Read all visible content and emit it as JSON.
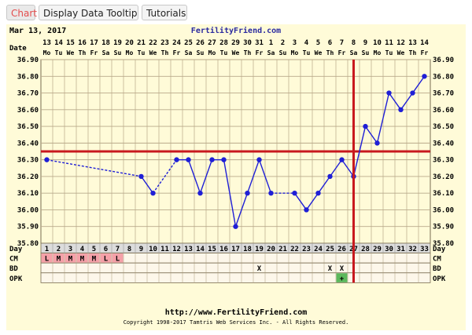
{
  "tabs": [
    {
      "label": "Chart",
      "active": true
    },
    {
      "label": "Display Data Tooltip",
      "active": false
    },
    {
      "label": "Tutorials",
      "active": false
    }
  ],
  "header": {
    "date": "Mar 13, 2017",
    "site": "FertilityFriend.com",
    "row_date_label": "Date",
    "row_day_label": "Day"
  },
  "footer": {
    "url": "http://www.FertilityFriend.com",
    "copyright": "Copyright 1998-2017 Tamtris Web Services Inc. - All Rights Reserved."
  },
  "colors": {
    "plot_bg": "#fffbd8",
    "grid": "#b8a98a",
    "line": "#1f1fd6",
    "coverline": "#c8181e",
    "menses": "#f5a0a8",
    "opk_positive": "#5cb85c",
    "site_link": "#2b2b9f"
  },
  "chart_data": {
    "type": "line",
    "title": "",
    "xlabel": "",
    "ylabel": "",
    "ylim": [
      35.8,
      36.9
    ],
    "yticks": [
      "35.80",
      "35.90",
      "36.00",
      "36.10",
      "36.20",
      "36.30",
      "36.40",
      "36.50",
      "36.60",
      "36.70",
      "36.80",
      "36.90"
    ],
    "dates": [
      "13",
      "14",
      "15",
      "16",
      "17",
      "18",
      "19",
      "20",
      "21",
      "22",
      "23",
      "24",
      "25",
      "26",
      "27",
      "28",
      "29",
      "30",
      "31",
      "1",
      "2",
      "3",
      "4",
      "5",
      "6",
      "7",
      "8",
      "9",
      "10",
      "11",
      "12",
      "13",
      "14"
    ],
    "weekdays": [
      "Mo",
      "Tu",
      "We",
      "Th",
      "Fr",
      "Sa",
      "Su",
      "Mo",
      "Tu",
      "We",
      "Th",
      "Fr",
      "Sa",
      "Su",
      "Mo",
      "Tu",
      "We",
      "Th",
      "Fr",
      "Sa",
      "Su",
      "Mo",
      "Tu",
      "We",
      "Th",
      "Fr",
      "Sa",
      "Su",
      "Mo",
      "Tu",
      "We",
      "Th",
      "Fr"
    ],
    "cycle_days": [
      "1",
      "2",
      "3",
      "4",
      "5",
      "6",
      "7",
      "8",
      "9",
      "10",
      "11",
      "12",
      "13",
      "14",
      "15",
      "16",
      "17",
      "18",
      "19",
      "20",
      "21",
      "22",
      "23",
      "24",
      "25",
      "26",
      "27",
      "28",
      "29",
      "30",
      "31",
      "32",
      "33"
    ],
    "temps": [
      36.3,
      null,
      null,
      null,
      null,
      null,
      null,
      null,
      36.2,
      36.1,
      null,
      36.3,
      36.3,
      36.1,
      36.3,
      36.3,
      35.9,
      36.1,
      36.3,
      36.1,
      null,
      36.1,
      36.0,
      36.1,
      36.2,
      36.3,
      36.2,
      36.5,
      36.4,
      36.7,
      36.6,
      36.7,
      36.8
    ],
    "coverline": 36.35,
    "ovulation_day": 27,
    "rows": [
      {
        "label": "CM",
        "marks": [
          {
            "day": 1,
            "text": "L",
            "menses": true
          },
          {
            "day": 2,
            "text": "M",
            "menses": true
          },
          {
            "day": 3,
            "text": "M",
            "menses": true
          },
          {
            "day": 4,
            "text": "M",
            "menses": true
          },
          {
            "day": 5,
            "text": "M",
            "menses": true
          },
          {
            "day": 6,
            "text": "L",
            "menses": true
          },
          {
            "day": 7,
            "text": "L",
            "menses": true
          }
        ]
      },
      {
        "label": "BD",
        "marks": [
          {
            "day": 19,
            "text": "X"
          },
          {
            "day": 25,
            "text": "X"
          },
          {
            "day": 26,
            "text": "X"
          }
        ]
      },
      {
        "label": "OPK",
        "marks": [
          {
            "day": 26,
            "text": "+",
            "positive": true
          }
        ]
      }
    ]
  }
}
